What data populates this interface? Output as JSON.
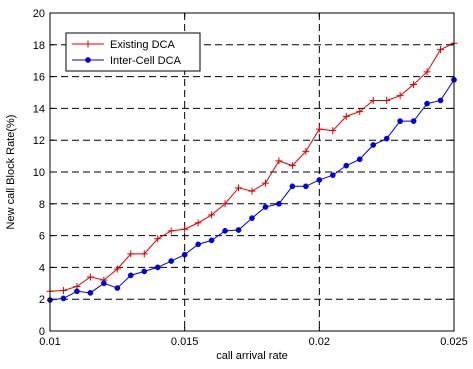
{
  "chart_data": {
    "type": "line",
    "title": "",
    "xlabel": "call arrival rate",
    "ylabel": "New call Block Rate(%)",
    "xlim": [
      0.01,
      0.025
    ],
    "ylim": [
      0,
      20
    ],
    "xticks": [
      "0.01",
      "0.015",
      "0.02",
      "0.025"
    ],
    "xtick_values": [
      0.01,
      0.015,
      0.02,
      0.025
    ],
    "yticks": [
      "0",
      "2",
      "4",
      "6",
      "8",
      "10",
      "12",
      "14",
      "16",
      "18",
      "20"
    ],
    "ytick_values": [
      0,
      2,
      4,
      6,
      8,
      10,
      12,
      14,
      16,
      18,
      20
    ],
    "grid": true,
    "legend_position": "top-left",
    "x": [
      0.01,
      0.0105,
      0.011,
      0.0115,
      0.012,
      0.0125,
      0.013,
      0.0135,
      0.014,
      0.0145,
      0.015,
      0.0155,
      0.016,
      0.0165,
      0.017,
      0.0175,
      0.018,
      0.0185,
      0.019,
      0.0195,
      0.02,
      0.0205,
      0.021,
      0.0215,
      0.022,
      0.0225,
      0.023,
      0.0235,
      0.024,
      0.0245,
      0.025
    ],
    "series": [
      {
        "name": "Existing DCA",
        "color": "#e00000",
        "marker": "plus",
        "values": [
          2.5,
          2.55,
          2.8,
          3.4,
          3.2,
          3.9,
          4.85,
          4.85,
          5.8,
          6.3,
          6.4,
          6.8,
          7.3,
          8.0,
          9.0,
          8.8,
          9.3,
          10.7,
          10.4,
          11.3,
          12.7,
          12.6,
          13.5,
          13.8,
          14.5,
          14.5,
          14.8,
          15.5,
          16.3,
          17.7,
          18.1
        ]
      },
      {
        "name": "Inter-Cell DCA",
        "color": "#0000e0",
        "marker": "dot",
        "values": [
          1.95,
          2.05,
          2.5,
          2.4,
          3.0,
          2.7,
          3.5,
          3.75,
          4.0,
          4.4,
          4.8,
          5.45,
          5.7,
          6.3,
          6.35,
          7.1,
          7.8,
          8.0,
          9.1,
          9.1,
          9.5,
          9.8,
          10.4,
          10.8,
          11.7,
          12.1,
          13.2,
          13.2,
          14.3,
          14.5,
          15.8
        ]
      }
    ]
  }
}
